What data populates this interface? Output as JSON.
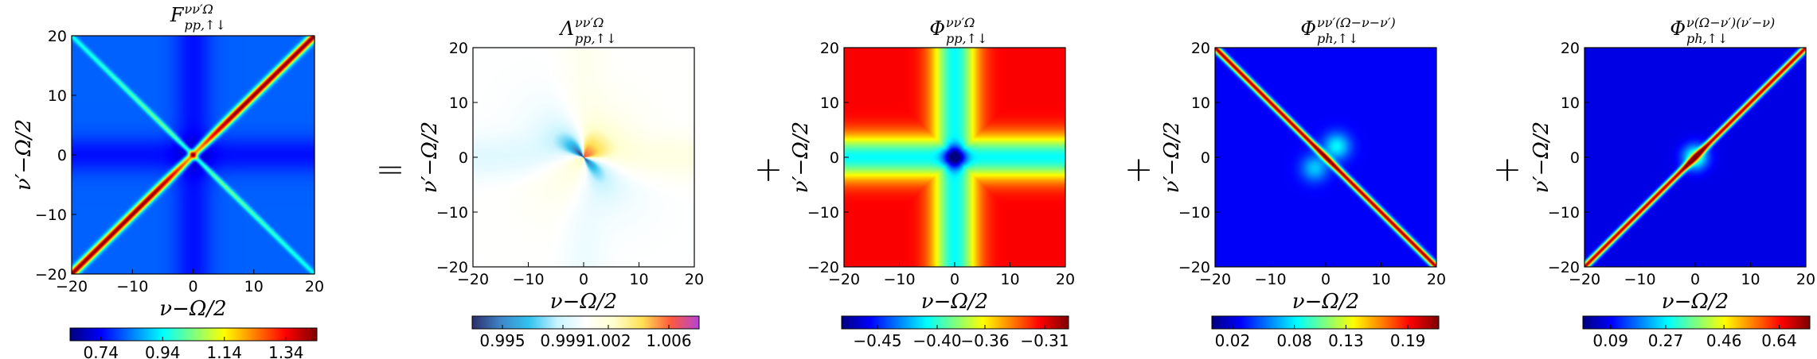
{
  "chart_data": [
    {
      "type": "heatmap",
      "title": "F pp,↑↓ (νν′Ω)",
      "title_parts": {
        "base": "F",
        "sup": "νν′Ω",
        "sub": "pp,↑↓"
      },
      "xlabel": "ν−Ω/2",
      "ylabel": "ν′−Ω/2",
      "xlim": [
        -20,
        20
      ],
      "ylim": [
        -20,
        20
      ],
      "xticks": [
        "−20",
        "−10",
        "0",
        "10",
        "20"
      ],
      "yticks": [
        "20",
        "10",
        "0",
        "−10",
        "−20"
      ],
      "colormap": "jet",
      "colorbar_ticks": [
        "0.74",
        "0.94",
        "1.14",
        "1.34"
      ],
      "colorbar_range": [
        0.64,
        1.44
      ],
      "pattern": "main diagonal ridge (ν=ν′) with max ≈1.44, weaker anti-diagonal, dark band along axes"
    },
    {
      "type": "heatmap",
      "title": "Λ pp,↑↓ (νν′Ω)",
      "title_parts": {
        "base": "Λ",
        "sup": "νν′Ω",
        "sub": "pp,↑↓"
      },
      "xlabel": "ν−Ω/2",
      "ylabel": "ν′−Ω/2",
      "xlim": [
        -20,
        20
      ],
      "ylim": [
        -20,
        20
      ],
      "xticks": [
        "−20",
        "−10",
        "0",
        "10",
        "20"
      ],
      "yticks": [
        "20",
        "10",
        "0",
        "−10",
        "−20"
      ],
      "colormap": "diverging (cyan-white-yellow-magenta)",
      "colorbar_ticks": [
        "0.995",
        "0.999",
        "1.002",
        "1.006"
      ],
      "colorbar_range": [
        0.993,
        1.008
      ],
      "pattern": "four-lobed structure near origin, values ≈1"
    },
    {
      "type": "heatmap",
      "title": "Φ pp,↑↓ (νν′Ω)",
      "title_parts": {
        "base": "Φ",
        "sup": "νν′Ω",
        "sub": "pp,↑↓"
      },
      "xlabel": "ν−Ω/2",
      "ylabel": "ν′−Ω/2",
      "xlim": [
        -20,
        20
      ],
      "ylim": [
        -20,
        20
      ],
      "xticks": [
        "−20",
        "−10",
        "0",
        "10",
        "20"
      ],
      "yticks": [
        "20",
        "10",
        "0",
        "−10",
        "−20"
      ],
      "colormap": "jet",
      "colorbar_ticks": [
        "−0.45",
        "−0.40",
        "−0.36",
        "−0.31"
      ],
      "colorbar_range": [
        -0.48,
        -0.29
      ],
      "pattern": "cross along ν=0 and ν′=0 with minimum at origin"
    },
    {
      "type": "heatmap",
      "title": "Φ ph,↑↓ (νν′(Ω−ν−ν′))",
      "title_parts": {
        "base": "Φ",
        "sup": "νν′(Ω−ν−ν′)",
        "sub": "ph,↑↓"
      },
      "xlabel": "ν−Ω/2",
      "ylabel": "ν′−Ω/2",
      "xlim": [
        -20,
        20
      ],
      "ylim": [
        -20,
        20
      ],
      "xticks": [
        "−20",
        "−10",
        "0",
        "10",
        "20"
      ],
      "yticks": [
        "20",
        "10",
        "0",
        "−10",
        "−20"
      ],
      "colormap": "jet",
      "colorbar_ticks": [
        "0.02",
        "0.08",
        "0.13",
        "0.19"
      ],
      "colorbar_range": [
        0.0,
        0.22
      ],
      "pattern": "anti-diagonal ridge (ν=−ν′)"
    },
    {
      "type": "heatmap",
      "title": "Φ ph,↑↓ (ν(Ω−ν′)(ν′−ν))",
      "title_parts": {
        "base": "Φ",
        "sup": "ν(Ω−ν′)(ν′−ν)",
        "sub": "ph,↑↓",
        "sub_bar": true
      },
      "xlabel": "ν−Ω/2",
      "ylabel": "ν′−Ω/2",
      "xlim": [
        -20,
        20
      ],
      "ylim": [
        -20,
        20
      ],
      "xticks": [
        "−20",
        "−10",
        "0",
        "10",
        "20"
      ],
      "yticks": [
        "20",
        "10",
        "0",
        "−10",
        "−20"
      ],
      "colormap": "jet",
      "colorbar_ticks": [
        "0.09",
        "0.27",
        "0.46",
        "0.64"
      ],
      "colorbar_range": [
        0.0,
        0.74
      ],
      "pattern": "main diagonal ridge (ν=ν′)"
    }
  ],
  "operators": [
    "=",
    "+",
    "+",
    "+"
  ],
  "colors": {
    "jet": [
      "#00007f",
      "#0000ff",
      "#007fff",
      "#00ffff",
      "#7fff7f",
      "#ffff00",
      "#ff7f00",
      "#ff0000",
      "#7f0000"
    ],
    "diverging": [
      "#2c2f6b",
      "#3f86c8",
      "#32c4f0",
      "#c9f4ff",
      "#ffffff",
      "#ffffcf",
      "#ffe255",
      "#ff5a3c",
      "#b545d6"
    ]
  }
}
